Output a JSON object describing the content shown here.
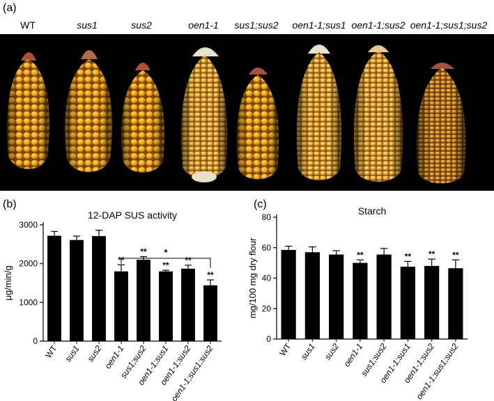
{
  "panel_a": {
    "label": "(a)",
    "genotypes": [
      "WT",
      "sus1",
      "sus2",
      "oen1-1",
      "sus1;sus2",
      "oen1-1;sus1",
      "oen1-1;sus2",
      "oen1-1;sus1;sus2"
    ]
  },
  "chart_data": [
    {
      "type": "bar",
      "panel": "(b)",
      "title": "12-DAP SUS activity",
      "ylabel": "μg/min/g",
      "xlabel": "",
      "ylim": [
        0,
        3000
      ],
      "yticks": [
        0,
        1000,
        2000,
        3000
      ],
      "categories": [
        "WT",
        "sus1",
        "sus2",
        "oen1-1",
        "sus1;sus2",
        "oen1-1;sus1",
        "oen1-1;sus2",
        "oen1-1;sus1;sus2"
      ],
      "values": [
        2720,
        2610,
        2710,
        1800,
        2100,
        1800,
        1870,
        1440
      ],
      "errors": [
        110,
        100,
        150,
        170,
        80,
        30,
        90,
        140
      ],
      "significance": [
        "",
        "",
        "",
        "**",
        "**",
        "**",
        "**",
        "**"
      ],
      "bracket": {
        "from": "oen1-1",
        "to": "oen1-1;sus1;sus2",
        "label": "*"
      },
      "grid": false,
      "color": "#000000"
    },
    {
      "type": "bar",
      "panel": "(c)",
      "title": "Starch",
      "ylabel": "mg/100 mg dry flour",
      "xlabel": "",
      "ylim": [
        0,
        80
      ],
      "yticks": [
        0,
        20,
        40,
        60,
        80
      ],
      "categories": [
        "WT",
        "sus1",
        "sus2",
        "oen1-1",
        "sus1;sus2",
        "oen1-1;sus1",
        "oen1-1;sus2",
        "oen1-1;sus1;sus2"
      ],
      "values": [
        58.5,
        57,
        55.5,
        50,
        55.5,
        47.5,
        48,
        46.5
      ],
      "errors": [
        2.5,
        3.5,
        2.5,
        2,
        4,
        3.5,
        4.5,
        5.5
      ],
      "significance": [
        "",
        "",
        "",
        "**",
        "",
        "**",
        "**",
        "**"
      ],
      "grid": false,
      "color": "#000000"
    }
  ]
}
